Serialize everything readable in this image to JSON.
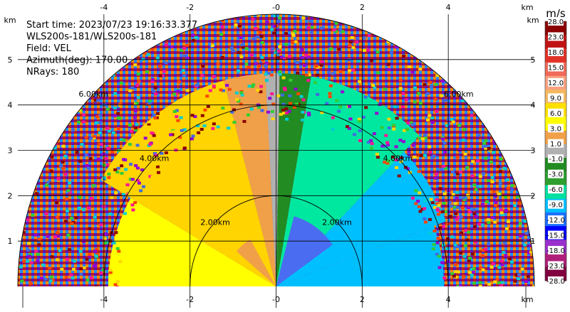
{
  "chart_data": {
    "type": "heatmap",
    "subtype": "radar-ppi-sector",
    "info_lines": [
      "Start time: 2023/07/23 19:16:33.377",
      "WLS200s-181/WLS200s-181",
      "Field: VEL",
      "Azimuth(deg): 170.00",
      "NRays: 180"
    ],
    "axis_unit": "km",
    "xlim": [
      -6,
      6
    ],
    "ylim": [
      0,
      6
    ],
    "x_ticks": [
      -4,
      -2,
      0,
      2,
      4
    ],
    "x_tick_labels": [
      "-4",
      "-2",
      "-0",
      "2",
      "4"
    ],
    "y_ticks": [
      1,
      2,
      3,
      4,
      5
    ],
    "y_tick_labels": [
      "1",
      "2",
      "3",
      "4",
      "5"
    ],
    "max_range_km": 6,
    "range_rings": [
      {
        "radius_km": 2,
        "label_left": "2.00km",
        "label_right": "2.00km"
      },
      {
        "radius_km": 4,
        "label_left": "4.00km",
        "label_right": "4.00km"
      },
      {
        "radius_km": 6,
        "label_left": "6.00km",
        "label_right": "6.00km"
      }
    ],
    "grid": true,
    "colorbar": {
      "title": "m/s",
      "ticks": [
        "28.0",
        "23.0",
        "18.0",
        "15.0",
        "12.0",
        "9.0",
        "6.0",
        "3.0",
        "1.0",
        "-1.0",
        "-3.0",
        "-6.0",
        "-9.0",
        "-12.0",
        "-15.0",
        "-18.0",
        "-23.0",
        "-28.0"
      ],
      "colors": [
        "#8b0000",
        "#c01414",
        "#e03228",
        "#f06a5a",
        "#f8a080",
        "#f4b860",
        "#fde000",
        "#ffff00",
        "#f0a048",
        "#b0b0b0",
        "#228b22",
        "#2e9e2e",
        "#00e0a0",
        "#00bfff",
        "#1e6fff",
        "#0000ff",
        "#9932cc",
        "#b0207a",
        "#800040"
      ]
    },
    "field_colors": {
      "receding_strong": "#ffff00",
      "receding": "#ffd400",
      "receding_weak": "#f0a048",
      "zero": "#b0b0b0",
      "approaching_weak": "#228b22",
      "approaching": "#00e8a0",
      "approaching_strong": "#00bfff",
      "approaching_max": "#4a6cf0"
    }
  }
}
